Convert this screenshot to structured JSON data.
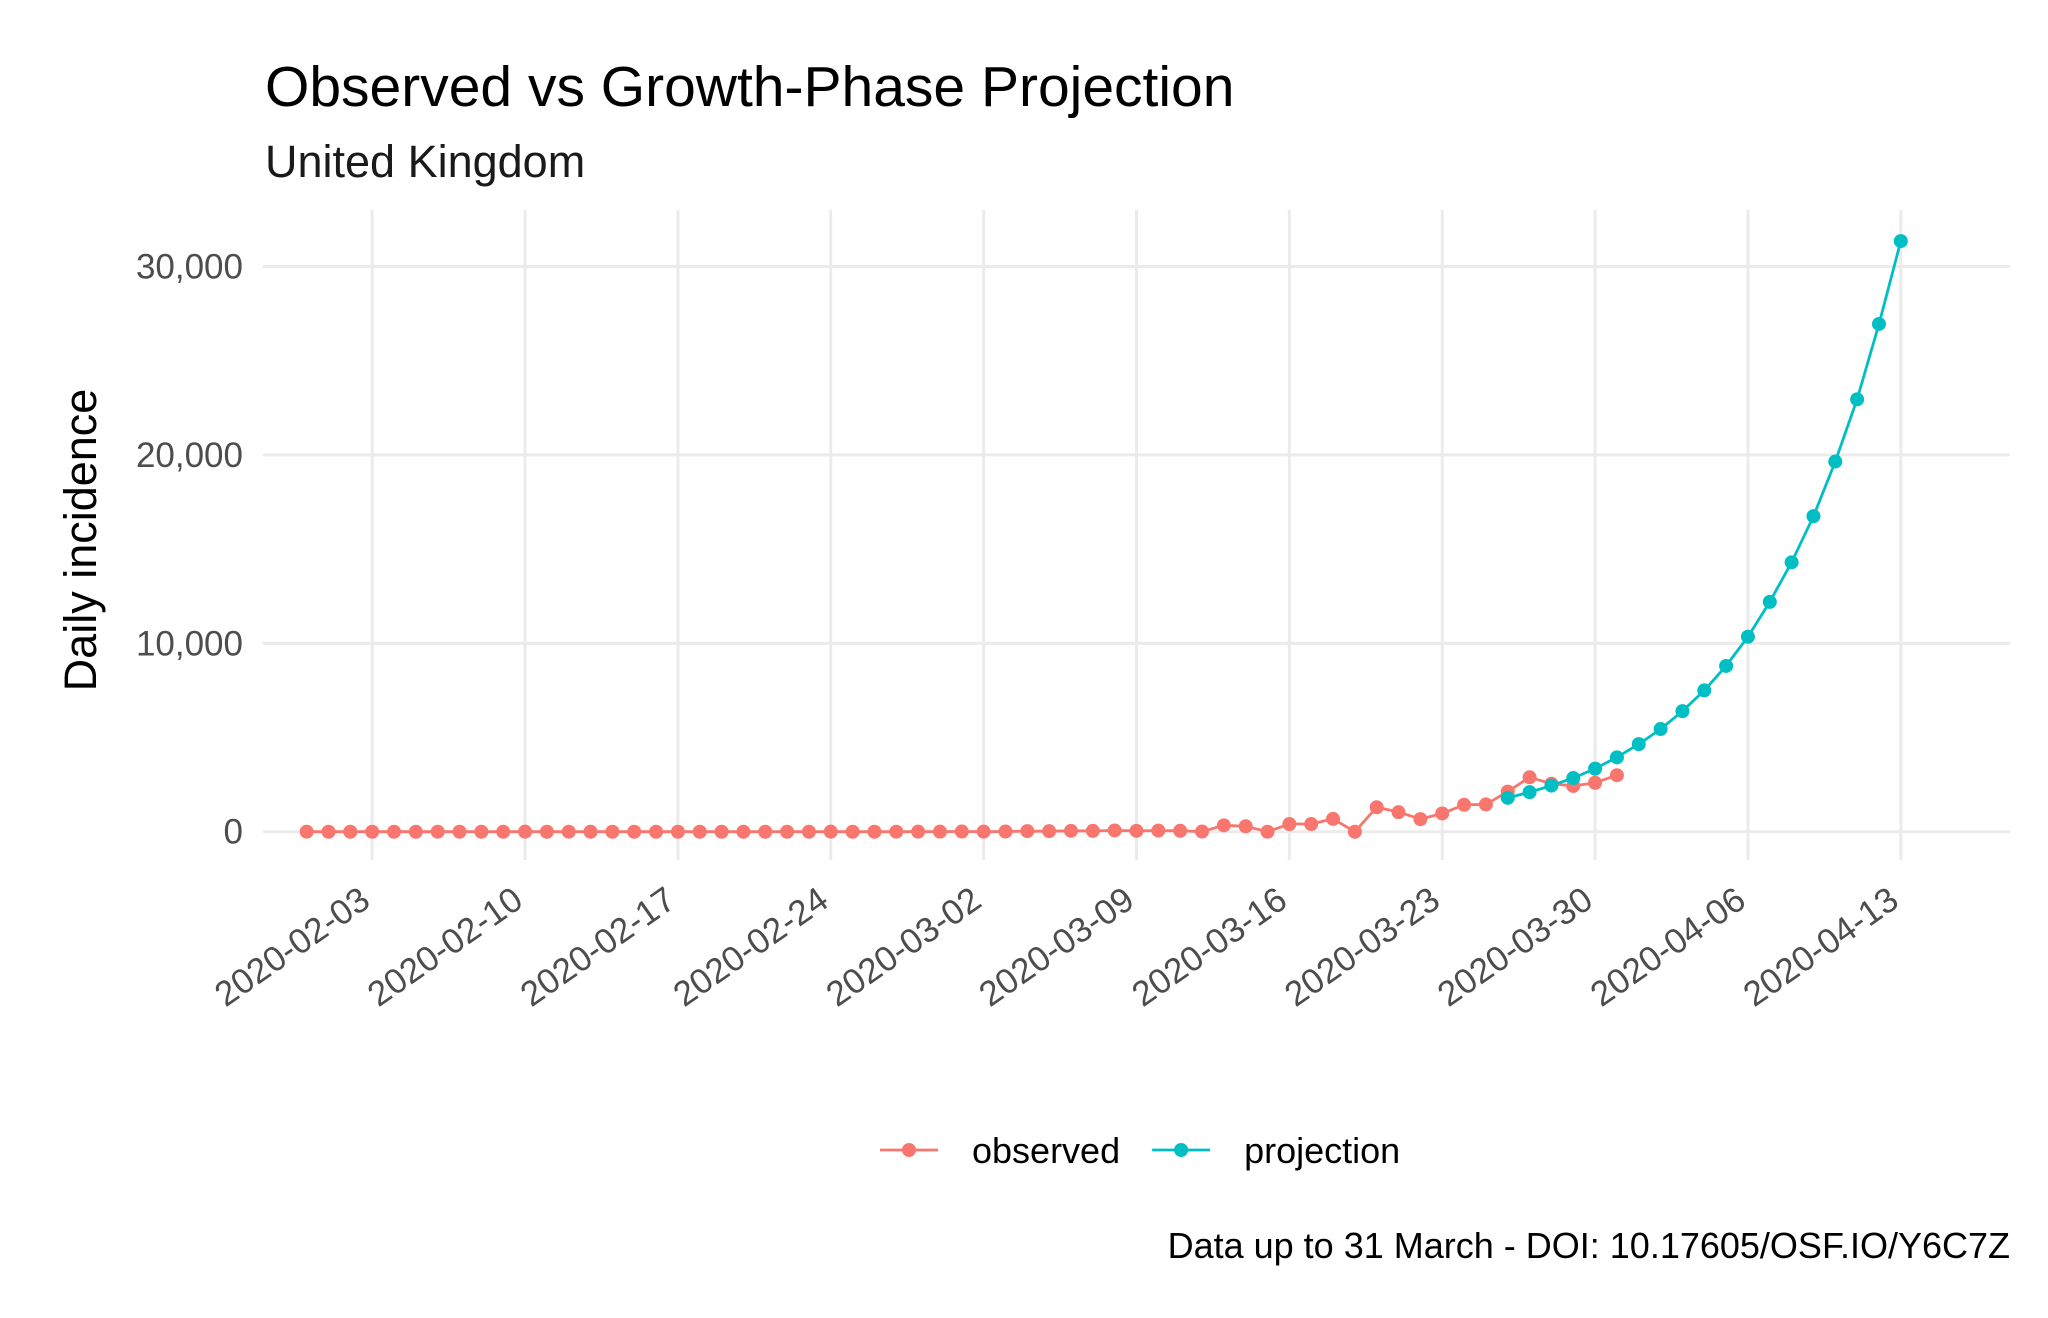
{
  "chart_data": {
    "type": "line",
    "title": "Observed vs Growth-Phase Projection",
    "subtitle": "United Kingdom",
    "xlabel": "",
    "ylabel": "Daily incidence",
    "caption": "Data up to 31 March - DOI: 10.17605/OSF.IO/Y6C7Z",
    "x_type": "date",
    "xlim": [
      "2020-01-29",
      "2020-04-18"
    ],
    "ylim": [
      -1500,
      33000
    ],
    "x_ticks": [
      "2020-02-03",
      "2020-02-10",
      "2020-02-17",
      "2020-02-24",
      "2020-03-02",
      "2020-03-09",
      "2020-03-16",
      "2020-03-23",
      "2020-03-30",
      "2020-04-06",
      "2020-04-13"
    ],
    "y_ticks": [
      0,
      10000,
      20000,
      30000
    ],
    "y_tick_labels": [
      "0",
      "10,000",
      "20,000",
      "30,000"
    ],
    "grid": true,
    "legend_position": "bottom",
    "series": [
      {
        "name": "observed",
        "color": "#F8766D",
        "points": [
          [
            "2020-01-31",
            2
          ],
          [
            "2020-02-01",
            0
          ],
          [
            "2020-02-02",
            0
          ],
          [
            "2020-02-03",
            0
          ],
          [
            "2020-02-04",
            0
          ],
          [
            "2020-02-05",
            0
          ],
          [
            "2020-02-06",
            1
          ],
          [
            "2020-02-07",
            0
          ],
          [
            "2020-02-08",
            0
          ],
          [
            "2020-02-09",
            0
          ],
          [
            "2020-02-10",
            4
          ],
          [
            "2020-02-11",
            0
          ],
          [
            "2020-02-12",
            1
          ],
          [
            "2020-02-13",
            0
          ],
          [
            "2020-02-14",
            0
          ],
          [
            "2020-02-15",
            0
          ],
          [
            "2020-02-16",
            0
          ],
          [
            "2020-02-17",
            0
          ],
          [
            "2020-02-18",
            0
          ],
          [
            "2020-02-19",
            0
          ],
          [
            "2020-02-20",
            0
          ],
          [
            "2020-02-21",
            0
          ],
          [
            "2020-02-22",
            0
          ],
          [
            "2020-02-23",
            0
          ],
          [
            "2020-02-24",
            4
          ],
          [
            "2020-02-25",
            0
          ],
          [
            "2020-02-26",
            0
          ],
          [
            "2020-02-27",
            2
          ],
          [
            "2020-02-28",
            5
          ],
          [
            "2020-02-29",
            3
          ],
          [
            "2020-03-01",
            12
          ],
          [
            "2020-03-02",
            4
          ],
          [
            "2020-03-03",
            11
          ],
          [
            "2020-03-04",
            34
          ],
          [
            "2020-03-05",
            30
          ],
          [
            "2020-03-06",
            48
          ],
          [
            "2020-03-07",
            43
          ],
          [
            "2020-03-08",
            67
          ],
          [
            "2020-03-09",
            48
          ],
          [
            "2020-03-10",
            61
          ],
          [
            "2020-03-11",
            50
          ],
          [
            "2020-03-12",
            10
          ],
          [
            "2020-03-13",
            340
          ],
          [
            "2020-03-14",
            290
          ],
          [
            "2020-03-15",
            0
          ],
          [
            "2020-03-16",
            410
          ],
          [
            "2020-03-17",
            410
          ],
          [
            "2020-03-18",
            680
          ],
          [
            "2020-03-19",
            0
          ],
          [
            "2020-03-20",
            1300
          ],
          [
            "2020-03-21",
            1040
          ],
          [
            "2020-03-22",
            670
          ],
          [
            "2020-03-23",
            970
          ],
          [
            "2020-03-24",
            1430
          ],
          [
            "2020-03-25",
            1450
          ],
          [
            "2020-03-26",
            2130
          ],
          [
            "2020-03-27",
            2890
          ],
          [
            "2020-03-28",
            2550
          ],
          [
            "2020-03-29",
            2430
          ],
          [
            "2020-03-30",
            2600
          ],
          [
            "2020-03-31",
            3000
          ]
        ]
      },
      {
        "name": "projection",
        "color": "#00BFC4",
        "points": [
          [
            "2020-03-26",
            1800
          ],
          [
            "2020-03-27",
            2100
          ],
          [
            "2020-03-28",
            2450
          ],
          [
            "2020-03-29",
            2850
          ],
          [
            "2020-03-30",
            3350
          ],
          [
            "2020-03-31",
            3950
          ],
          [
            "2020-04-01",
            4650
          ],
          [
            "2020-04-02",
            5450
          ],
          [
            "2020-04-03",
            6400
          ],
          [
            "2020-04-04",
            7500
          ],
          [
            "2020-04-05",
            8800
          ],
          [
            "2020-04-06",
            10350
          ],
          [
            "2020-04-07",
            12200
          ],
          [
            "2020-04-08",
            14300
          ],
          [
            "2020-04-09",
            16750
          ],
          [
            "2020-04-10",
            19650
          ],
          [
            "2020-04-11",
            22950
          ],
          [
            "2020-04-12",
            26950
          ],
          [
            "2020-04-13",
            31350
          ]
        ]
      }
    ]
  }
}
